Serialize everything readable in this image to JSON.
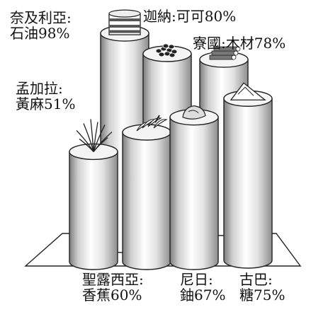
{
  "chart_data": {
    "type": "bar",
    "title": "",
    "xlabel": "",
    "ylabel": "",
    "ylim": [
      0,
      100
    ],
    "categories": [
      {
        "country": "奈及利亞:",
        "product": "石油",
        "value_text": "98%"
      },
      {
        "country": "迦納:",
        "product": "可可",
        "value_text": "80%"
      },
      {
        "country": "寮國:",
        "product": "木材",
        "value_text": "78%"
      },
      {
        "country": "孟加拉:",
        "product": "黃麻",
        "value_text": "51%"
      },
      {
        "country": "聖露西亞:",
        "product": "香蕉",
        "value_text": "60%"
      },
      {
        "country": "尼日:",
        "product": "鈾",
        "value_text": "67%"
      },
      {
        "country": "古巴:",
        "product": "糖",
        "value_text": "75%"
      }
    ],
    "values": [
      98,
      80,
      78,
      51,
      60,
      67,
      75
    ],
    "icons": [
      "oil-barrel-icon",
      "cocoa-beans-icon",
      "timber-logs-icon",
      "jute-plant-icon",
      "banana-bunch-icon",
      "uranium-ore-icon",
      "sugar-pile-icon"
    ],
    "colors": {
      "bar_fill": "#ffffff",
      "bar_shade": "#9a9a9a",
      "stroke": "#222222",
      "base": "#ffffff"
    }
  }
}
